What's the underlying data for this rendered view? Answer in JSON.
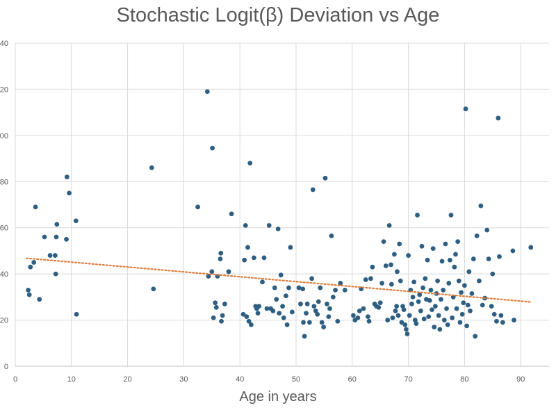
{
  "chart_data": {
    "type": "scatter",
    "title": "Stochastic Logit(β) Deviation vs Age",
    "xlabel": "Age in years",
    "ylabel": "",
    "xlim": [
      0,
      100
    ],
    "ylim": [
      0,
      140
    ],
    "x_ticks": [
      0,
      10,
      20,
      30,
      40,
      50,
      60,
      70,
      80,
      90
    ],
    "y_ticks": [
      0,
      20,
      40,
      60,
      80,
      100,
      120,
      140
    ],
    "y_tick_labels": [
      "0",
      "20",
      "40",
      "60",
      "80",
      "100",
      "120",
      "140"
    ],
    "grid": true,
    "legend": "none",
    "series_color": "#2e5f82",
    "trendline": {
      "type": "linear",
      "color": "#e07b39",
      "style": "dotted",
      "x": [
        2,
        92
      ],
      "y": [
        46.8,
        27.8
      ]
    },
    "points": [
      [
        2.3,
        33
      ],
      [
        2.5,
        31
      ],
      [
        2.7,
        43
      ],
      [
        3.3,
        45
      ],
      [
        3.6,
        69
      ],
      [
        4.3,
        29
      ],
      [
        5.2,
        56
      ],
      [
        6.2,
        48
      ],
      [
        7.1,
        48
      ],
      [
        7.2,
        40
      ],
      [
        7.3,
        56
      ],
      [
        7.4,
        61.5
      ],
      [
        9.1,
        55
      ],
      [
        9.2,
        82
      ],
      [
        9.6,
        75
      ],
      [
        10.8,
        63
      ],
      [
        10.9,
        22.5
      ],
      [
        24.3,
        86
      ],
      [
        24.6,
        33.5
      ],
      [
        32.5,
        69
      ],
      [
        34.2,
        119
      ],
      [
        34.4,
        39
      ],
      [
        35.0,
        41
      ],
      [
        35.1,
        94.5
      ],
      [
        35.3,
        21
      ],
      [
        35.6,
        27.5
      ],
      [
        35.8,
        25.5
      ],
      [
        36.0,
        39
      ],
      [
        36.5,
        46.5
      ],
      [
        36.6,
        49
      ],
      [
        36.7,
        19.5
      ],
      [
        36.9,
        22
      ],
      [
        37.3,
        27
      ],
      [
        38.0,
        41
      ],
      [
        38.5,
        66
      ],
      [
        40.6,
        22.5
      ],
      [
        40.8,
        46
      ],
      [
        41.0,
        61
      ],
      [
        41.2,
        21.5
      ],
      [
        41.4,
        51.5
      ],
      [
        41.6,
        19.5
      ],
      [
        41.8,
        88
      ],
      [
        42.0,
        18
      ],
      [
        42.5,
        47
      ],
      [
        42.8,
        26
      ],
      [
        43.0,
        25
      ],
      [
        43.2,
        23
      ],
      [
        43.4,
        26
      ],
      [
        44.0,
        36.5
      ],
      [
        44.3,
        47
      ],
      [
        44.8,
        25
      ],
      [
        45.2,
        61
      ],
      [
        45.5,
        25
      ],
      [
        45.9,
        24
      ],
      [
        46.2,
        34
      ],
      [
        46.5,
        29
      ],
      [
        46.8,
        59.5
      ],
      [
        47.0,
        23
      ],
      [
        47.3,
        39.5
      ],
      [
        47.6,
        26
      ],
      [
        47.8,
        21
      ],
      [
        48.2,
        30.5
      ],
      [
        48.4,
        18
      ],
      [
        48.7,
        34
      ],
      [
        49.0,
        51.5
      ],
      [
        49.3,
        23.5
      ],
      [
        50.5,
        34
      ],
      [
        50.8,
        27
      ],
      [
        51.2,
        33.5
      ],
      [
        51.3,
        19
      ],
      [
        51.5,
        13
      ],
      [
        51.8,
        23
      ],
      [
        52.0,
        27
      ],
      [
        52.4,
        19
      ],
      [
        52.8,
        38
      ],
      [
        53.0,
        76.5
      ],
      [
        53.2,
        26
      ],
      [
        53.5,
        24
      ],
      [
        53.8,
        22.5
      ],
      [
        54.0,
        28
      ],
      [
        54.3,
        34
      ],
      [
        54.6,
        19
      ],
      [
        54.9,
        17
      ],
      [
        55.2,
        81.5
      ],
      [
        55.5,
        27
      ],
      [
        55.8,
        21.5
      ],
      [
        56.0,
        25
      ],
      [
        56.3,
        56.5
      ],
      [
        56.6,
        30
      ],
      [
        57.0,
        33
      ],
      [
        57.4,
        19.5
      ],
      [
        57.9,
        36
      ],
      [
        58.7,
        33
      ],
      [
        60.2,
        22
      ],
      [
        60.5,
        20
      ],
      [
        61.0,
        21
      ],
      [
        61.3,
        24
      ],
      [
        61.6,
        33.5
      ],
      [
        62.0,
        25
      ],
      [
        62.4,
        37.5
      ],
      [
        62.8,
        21.5
      ],
      [
        63.0,
        19.5
      ],
      [
        63.3,
        38
      ],
      [
        63.6,
        43
      ],
      [
        64.0,
        27
      ],
      [
        64.3,
        26
      ],
      [
        64.7,
        25.5
      ],
      [
        65.0,
        27.5
      ],
      [
        65.3,
        36
      ],
      [
        65.6,
        54
      ],
      [
        66.0,
        43.5
      ],
      [
        66.3,
        20
      ],
      [
        66.6,
        61
      ],
      [
        66.9,
        44
      ],
      [
        67.0,
        35.5
      ],
      [
        67.2,
        21
      ],
      [
        67.5,
        48.5
      ],
      [
        67.7,
        24
      ],
      [
        67.9,
        26
      ],
      [
        68.0,
        41
      ],
      [
        68.2,
        22
      ],
      [
        68.4,
        53
      ],
      [
        68.6,
        37
      ],
      [
        68.8,
        19
      ],
      [
        69.0,
        26
      ],
      [
        69.2,
        24.5
      ],
      [
        69.4,
        18
      ],
      [
        69.6,
        16
      ],
      [
        69.8,
        14
      ],
      [
        70.0,
        48
      ],
      [
        70.2,
        22
      ],
      [
        70.4,
        33
      ],
      [
        70.6,
        27
      ],
      [
        70.8,
        30
      ],
      [
        71.0,
        36.5
      ],
      [
        71.2,
        20
      ],
      [
        71.4,
        18.5
      ],
      [
        71.6,
        65.5
      ],
      [
        71.8,
        28
      ],
      [
        72.0,
        31
      ],
      [
        72.2,
        24
      ],
      [
        72.4,
        52
      ],
      [
        72.6,
        34
      ],
      [
        72.8,
        20.5
      ],
      [
        73.0,
        38
      ],
      [
        73.2,
        29
      ],
      [
        73.4,
        46
      ],
      [
        73.6,
        21.5
      ],
      [
        73.8,
        28.5
      ],
      [
        74.0,
        33
      ],
      [
        74.2,
        24.5
      ],
      [
        74.4,
        51
      ],
      [
        74.6,
        17
      ],
      [
        74.8,
        26
      ],
      [
        75.0,
        31.5
      ],
      [
        75.2,
        37
      ],
      [
        75.4,
        22
      ],
      [
        75.6,
        16
      ],
      [
        75.8,
        29
      ],
      [
        76.0,
        45.5
      ],
      [
        76.2,
        33
      ],
      [
        76.4,
        20
      ],
      [
        76.6,
        53
      ],
      [
        76.8,
        25
      ],
      [
        77.0,
        18
      ],
      [
        77.2,
        36
      ],
      [
        77.4,
        46
      ],
      [
        77.6,
        65.5
      ],
      [
        77.8,
        21
      ],
      [
        78.0,
        30
      ],
      [
        78.2,
        43
      ],
      [
        78.4,
        48.5
      ],
      [
        78.6,
        25
      ],
      [
        78.8,
        54
      ],
      [
        79.0,
        37
      ],
      [
        79.2,
        19
      ],
      [
        79.4,
        32
      ],
      [
        79.6,
        22.5
      ],
      [
        79.8,
        27.5
      ],
      [
        80.0,
        35
      ],
      [
        80.2,
        111.5
      ],
      [
        80.4,
        17.5
      ],
      [
        80.6,
        26.5
      ],
      [
        80.8,
        41
      ],
      [
        81.0,
        24
      ],
      [
        81.3,
        31.5
      ],
      [
        81.6,
        46.5
      ],
      [
        81.9,
        13
      ],
      [
        82.2,
        56.5
      ],
      [
        82.6,
        37
      ],
      [
        82.9,
        69.5
      ],
      [
        83.2,
        26.5
      ],
      [
        83.6,
        29.5
      ],
      [
        84.0,
        59
      ],
      [
        84.3,
        46.5
      ],
      [
        84.8,
        26
      ],
      [
        85.0,
        40
      ],
      [
        85.3,
        22.5
      ],
      [
        85.7,
        19.5
      ],
      [
        86.0,
        107.5
      ],
      [
        86.2,
        47.5
      ],
      [
        86.5,
        22
      ],
      [
        86.8,
        19
      ],
      [
        88.6,
        50
      ],
      [
        88.8,
        20
      ],
      [
        91.8,
        51.5
      ]
    ]
  }
}
